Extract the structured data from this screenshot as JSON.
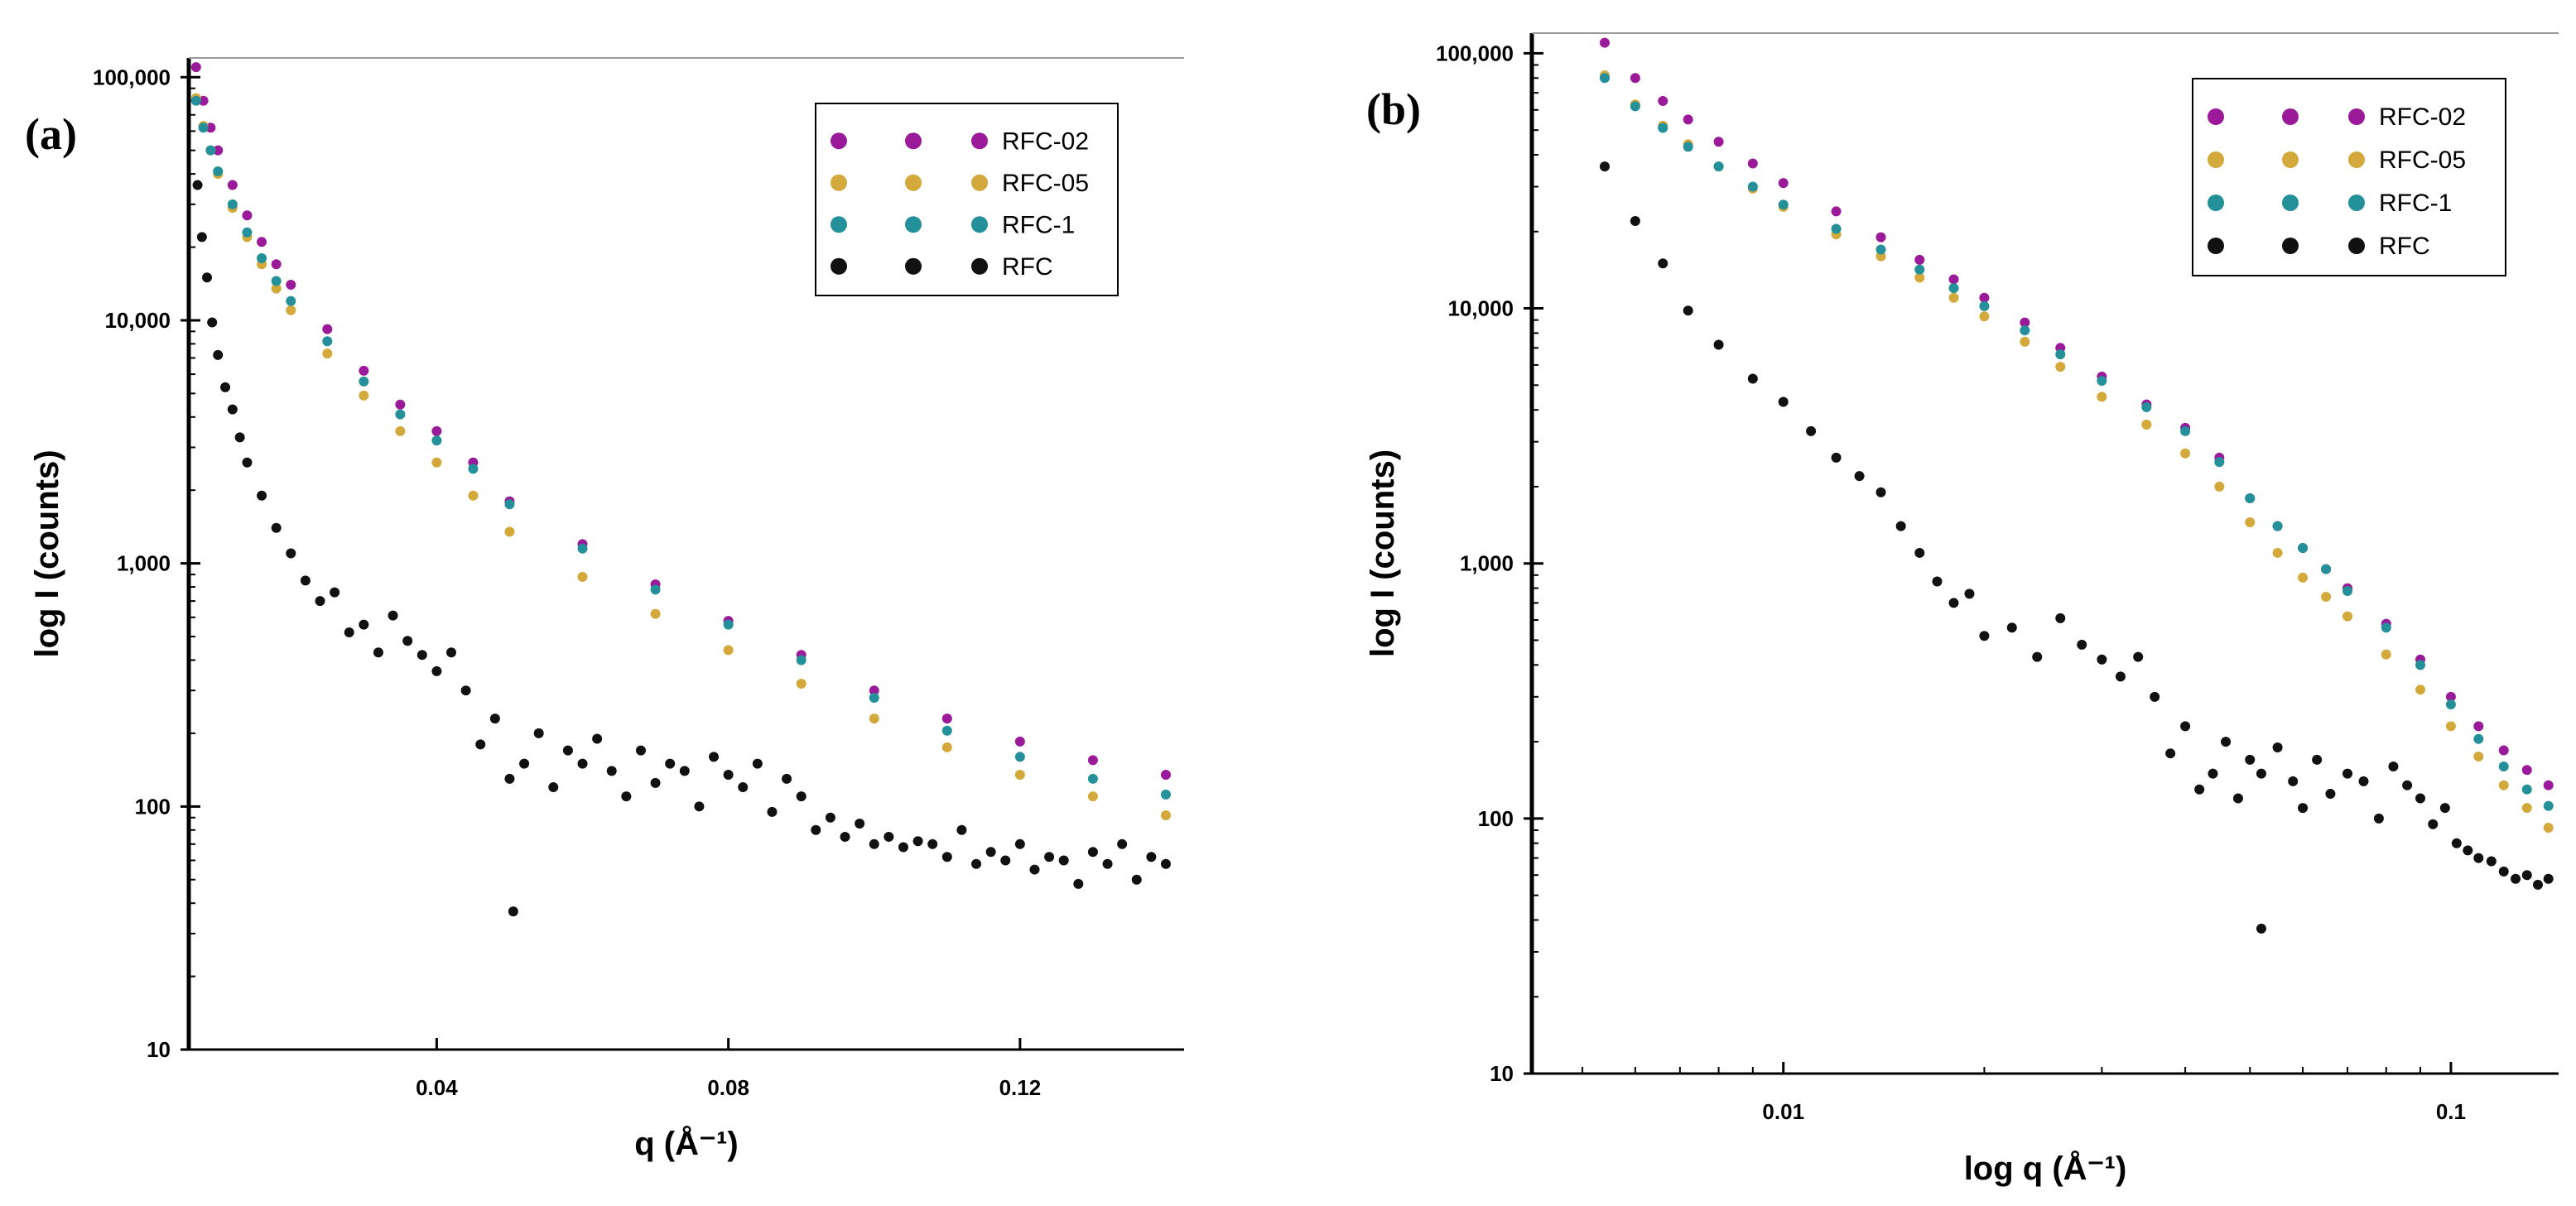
{
  "chart_data": [
    {
      "panel_label": "(a)",
      "type": "scatter",
      "xlabel": "q (Å⁻¹)",
      "ylabel": "log I (counts)",
      "xscale": "linear",
      "yscale": "log",
      "xlim": [
        0.006,
        0.1425
      ],
      "ylim": [
        10,
        120000
      ],
      "xticks": [
        0.04,
        0.08,
        0.12
      ],
      "xtick_labels": [
        "0.04",
        "0.08",
        "0.12"
      ],
      "yticks": [
        10,
        100,
        1000,
        10000,
        100000
      ],
      "ytick_labels": [
        "10",
        "100",
        "1,000",
        "10,000",
        "100,000"
      ],
      "legend_position": "top-right",
      "grid": false,
      "series": [
        {
          "name": "RFC-02",
          "color": "#9a1a9a",
          "x": [
            0.007,
            0.008,
            0.009,
            0.01,
            0.012,
            0.014,
            0.016,
            0.018,
            0.02,
            0.025,
            0.03,
            0.035,
            0.04,
            0.045,
            0.05,
            0.06,
            0.07,
            0.08,
            0.09,
            0.1,
            0.11,
            0.12,
            0.13,
            0.14
          ],
          "y": [
            110000,
            80000,
            62000,
            50000,
            36000,
            27000,
            21000,
            17000,
            14000,
            9200,
            6200,
            4500,
            3500,
            2600,
            1800,
            1200,
            820,
            580,
            420,
            300,
            230,
            185,
            155,
            135
          ]
        },
        {
          "name": "RFC-05",
          "color": "#d4a93c",
          "x": [
            0.007,
            0.008,
            0.009,
            0.01,
            0.012,
            0.014,
            0.016,
            0.018,
            0.02,
            0.025,
            0.03,
            0.035,
            0.04,
            0.045,
            0.05,
            0.06,
            0.07,
            0.08,
            0.09,
            0.1,
            0.11,
            0.12,
            0.13,
            0.14
          ],
          "y": [
            82000,
            63000,
            50000,
            40000,
            29000,
            22000,
            17000,
            13500,
            11000,
            7300,
            4900,
            3500,
            2600,
            1900,
            1350,
            880,
            620,
            440,
            320,
            230,
            175,
            135,
            110,
            92
          ]
        },
        {
          "name": "RFC-1",
          "color": "#23909a",
          "x": [
            0.007,
            0.008,
            0.009,
            0.01,
            0.012,
            0.014,
            0.016,
            0.018,
            0.02,
            0.025,
            0.03,
            0.035,
            0.04,
            0.045,
            0.05,
            0.06,
            0.07,
            0.08,
            0.09,
            0.1,
            0.11,
            0.12,
            0.13,
            0.14
          ],
          "y": [
            80000,
            62000,
            50000,
            41000,
            30000,
            23000,
            18000,
            14500,
            12000,
            8200,
            5600,
            4100,
            3200,
            2450,
            1750,
            1150,
            780,
            560,
            400,
            280,
            205,
            160,
            130,
            112
          ]
        },
        {
          "name": "RFC",
          "color": "#111111",
          "x": [
            0.0072,
            0.0078,
            0.0085,
            0.0092,
            0.01,
            0.011,
            0.012,
            0.013,
            0.014,
            0.016,
            0.018,
            0.02,
            0.022,
            0.024,
            0.026,
            0.028,
            0.03,
            0.032,
            0.034,
            0.036,
            0.038,
            0.04,
            0.042,
            0.044,
            0.046,
            0.048,
            0.05,
            0.052,
            0.054,
            0.056,
            0.058,
            0.06,
            0.062,
            0.064,
            0.066,
            0.068,
            0.07,
            0.072,
            0.074,
            0.076,
            0.078,
            0.08,
            0.082,
            0.084,
            0.086,
            0.088,
            0.09,
            0.092,
            0.094,
            0.096,
            0.098,
            0.1,
            0.102,
            0.104,
            0.106,
            0.108,
            0.11,
            0.112,
            0.114,
            0.116,
            0.118,
            0.12,
            0.122,
            0.124,
            0.126,
            0.128,
            0.13,
            0.132,
            0.134,
            0.136,
            0.138,
            0.14,
            0.0505
          ],
          "y": [
            36000,
            22000,
            15000,
            9800,
            7200,
            5300,
            4300,
            3300,
            2600,
            1900,
            1400,
            1100,
            850,
            700,
            760,
            520,
            560,
            430,
            610,
            480,
            420,
            360,
            430,
            300,
            180,
            230,
            130,
            150,
            200,
            120,
            170,
            150,
            190,
            140,
            110,
            170,
            125,
            150,
            140,
            100,
            160,
            135,
            120,
            150,
            95,
            130,
            110,
            80,
            90,
            75,
            85,
            70,
            75,
            68,
            72,
            70,
            62,
            80,
            58,
            65,
            60,
            70,
            55,
            62,
            60,
            48,
            65,
            58,
            70,
            50,
            62,
            58,
            37
          ]
        }
      ]
    },
    {
      "panel_label": "(b)",
      "type": "scatter",
      "xlabel": "log q (Å⁻¹)",
      "ylabel": "log I (counts)",
      "xscale": "log",
      "yscale": "log",
      "xlim": [
        0.0042,
        0.145
      ],
      "ylim": [
        10,
        120000
      ],
      "xticks": [
        0.01,
        0.1
      ],
      "xtick_labels": [
        "0.01",
        "0.1"
      ],
      "yticks": [
        10,
        100,
        1000,
        10000,
        100000
      ],
      "ytick_labels": [
        "10",
        "100",
        "1,000",
        "10,000",
        "100,000"
      ],
      "legend_position": "top-right",
      "grid": false,
      "series": [
        {
          "name": "RFC-02",
          "color": "#9a1a9a",
          "x": [
            0.0054,
            0.006,
            0.0066,
            0.0072,
            0.008,
            0.009,
            0.01,
            0.012,
            0.014,
            0.016,
            0.018,
            0.02,
            0.023,
            0.026,
            0.03,
            0.035,
            0.04,
            0.045,
            0.05,
            0.055,
            0.06,
            0.065,
            0.07,
            0.08,
            0.09,
            0.1,
            0.11,
            0.12,
            0.13,
            0.14
          ],
          "y": [
            110000,
            80000,
            65000,
            55000,
            45000,
            37000,
            31000,
            24000,
            19000,
            15500,
            13000,
            11000,
            8800,
            7000,
            5400,
            4200,
            3400,
            2600,
            1800,
            1400,
            1150,
            950,
            800,
            580,
            420,
            300,
            230,
            185,
            155,
            135
          ]
        },
        {
          "name": "RFC-05",
          "color": "#d4a93c",
          "x": [
            0.0054,
            0.006,
            0.0066,
            0.0072,
            0.008,
            0.009,
            0.01,
            0.012,
            0.014,
            0.016,
            0.018,
            0.02,
            0.023,
            0.026,
            0.03,
            0.035,
            0.04,
            0.045,
            0.05,
            0.055,
            0.06,
            0.065,
            0.07,
            0.08,
            0.09,
            0.1,
            0.11,
            0.12,
            0.13,
            0.14
          ],
          "y": [
            82000,
            63000,
            52000,
            44000,
            36000,
            29500,
            25000,
            19500,
            16000,
            13200,
            11000,
            9300,
            7400,
            5900,
            4500,
            3500,
            2700,
            2000,
            1450,
            1100,
            880,
            740,
            620,
            440,
            320,
            230,
            175,
            135,
            110,
            92
          ]
        },
        {
          "name": "RFC-1",
          "color": "#23909a",
          "x": [
            0.0054,
            0.006,
            0.0066,
            0.0072,
            0.008,
            0.009,
            0.01,
            0.012,
            0.014,
            0.016,
            0.018,
            0.02,
            0.023,
            0.026,
            0.03,
            0.035,
            0.04,
            0.045,
            0.05,
            0.055,
            0.06,
            0.065,
            0.07,
            0.08,
            0.09,
            0.1,
            0.11,
            0.12,
            0.13,
            0.14
          ],
          "y": [
            80000,
            62000,
            51000,
            43000,
            36000,
            30000,
            25500,
            20500,
            17000,
            14200,
            12000,
            10200,
            8200,
            6600,
            5200,
            4100,
            3300,
            2500,
            1800,
            1400,
            1150,
            950,
            780,
            560,
            400,
            280,
            205,
            160,
            130,
            112
          ]
        },
        {
          "name": "RFC",
          "color": "#111111",
          "x": [
            0.0054,
            0.006,
            0.0066,
            0.0072,
            0.008,
            0.009,
            0.01,
            0.011,
            0.012,
            0.013,
            0.014,
            0.015,
            0.016,
            0.017,
            0.018,
            0.019,
            0.02,
            0.022,
            0.024,
            0.026,
            0.028,
            0.03,
            0.032,
            0.034,
            0.036,
            0.038,
            0.04,
            0.042,
            0.044,
            0.046,
            0.048,
            0.05,
            0.052,
            0.055,
            0.058,
            0.06,
            0.063,
            0.066,
            0.07,
            0.074,
            0.078,
            0.082,
            0.086,
            0.09,
            0.094,
            0.098,
            0.102,
            0.106,
            0.11,
            0.115,
            0.12,
            0.125,
            0.13,
            0.135,
            0.14,
            0.052
          ],
          "y": [
            36000,
            22000,
            15000,
            9800,
            7200,
            5300,
            4300,
            3300,
            2600,
            2200,
            1900,
            1400,
            1100,
            850,
            700,
            760,
            520,
            560,
            430,
            610,
            480,
            420,
            360,
            430,
            300,
            180,
            230,
            130,
            150,
            200,
            120,
            170,
            150,
            190,
            140,
            110,
            170,
            125,
            150,
            140,
            100,
            160,
            135,
            120,
            95,
            110,
            80,
            75,
            70,
            68,
            62,
            58,
            60,
            55,
            58,
            37
          ]
        }
      ]
    }
  ]
}
